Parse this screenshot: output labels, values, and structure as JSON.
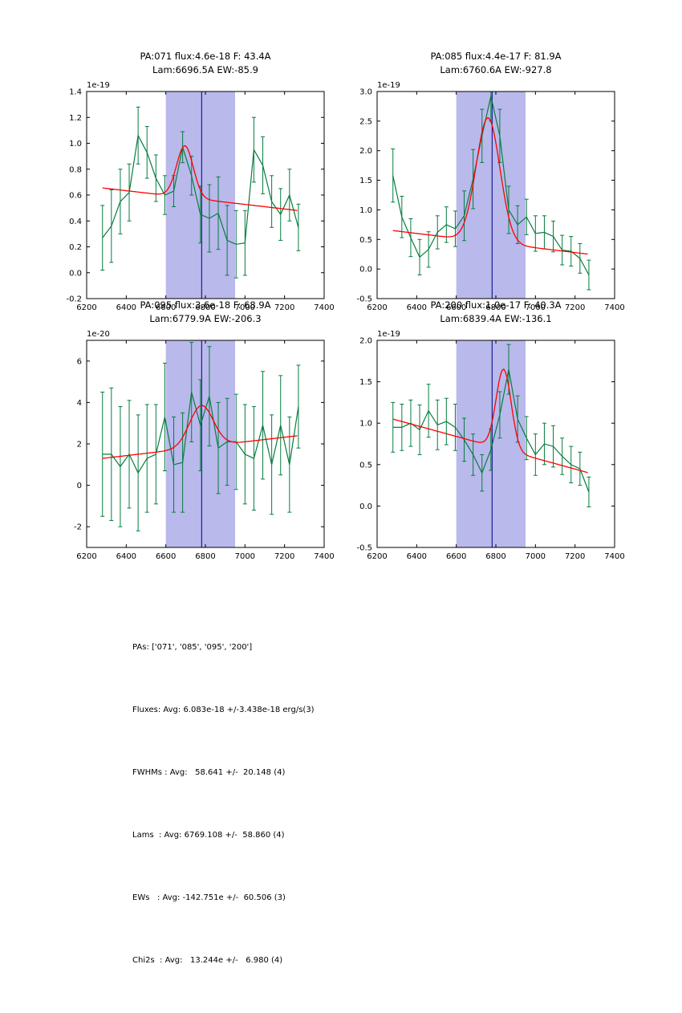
{
  "figure": {
    "background": "#ffffff",
    "data_color": "#067d3e",
    "fit_color": "#ff0000",
    "band_color": "#b9b9ec",
    "vline_color": "#000080",
    "frame_color": "#000000"
  },
  "chart_data": [
    {
      "type": "line",
      "title_line1": "PA:071 flux:4.6e-18 F: 43.4A",
      "title_line2": "Lam:6696.5A EW:-85.9",
      "y_scale_label": "1e-19",
      "xlim": [
        6200,
        7400
      ],
      "ylim": [
        -0.2,
        1.4
      ],
      "xticks": [
        "6200",
        "6400",
        "6600",
        "6800",
        "7000",
        "7200",
        "7400"
      ],
      "yticks": [
        "-0.2",
        "0.0",
        "0.2",
        "0.4",
        "0.6",
        "0.8",
        "1.0",
        "1.2",
        "1.4"
      ],
      "band": [
        6600,
        6950
      ],
      "vline": 6781,
      "grid": false,
      "legend": "none",
      "x": [
        6280,
        6325,
        6370,
        6415,
        6460,
        6505,
        6550,
        6595,
        6640,
        6685,
        6730,
        6775,
        6820,
        6865,
        6910,
        6955,
        7000,
        7045,
        7090,
        7135,
        7180,
        7225,
        7270
      ],
      "y": [
        0.27,
        0.36,
        0.55,
        0.62,
        1.06,
        0.93,
        0.73,
        0.6,
        0.63,
        0.97,
        0.75,
        0.45,
        0.42,
        0.46,
        0.25,
        0.22,
        0.23,
        0.95,
        0.83,
        0.55,
        0.45,
        0.6,
        0.35
      ],
      "yerr": [
        0.25,
        0.28,
        0.25,
        0.22,
        0.22,
        0.2,
        0.18,
        0.15,
        0.12,
        0.12,
        0.15,
        0.22,
        0.26,
        0.28,
        0.27,
        0.26,
        0.25,
        0.25,
        0.22,
        0.2,
        0.2,
        0.2,
        0.18
      ],
      "fit": {
        "name": "gaussian+continuum",
        "x_range": [
          6280,
          7270
        ],
        "cont_start": 0.655,
        "cont_end": 0.48,
        "center": 6696.5,
        "sigma": 42,
        "amplitude": 0.4
      }
    },
    {
      "type": "line",
      "title_line1": "PA:085 flux:4.4e-17 F: 81.9A",
      "title_line2": "Lam:6760.6A EW:-927.8",
      "y_scale_label": "1e-19",
      "xlim": [
        6200,
        7400
      ],
      "ylim": [
        -0.5,
        3.0
      ],
      "xticks": [
        "6200",
        "6400",
        "6600",
        "6800",
        "7000",
        "7200",
        "7400"
      ],
      "yticks": [
        "-0.5",
        "0.0",
        "0.5",
        "1.0",
        "1.5",
        "2.0",
        "2.5",
        "3.0"
      ],
      "band": [
        6600,
        6950
      ],
      "vline": 6781,
      "grid": false,
      "legend": "none",
      "x": [
        6280,
        6325,
        6370,
        6415,
        6460,
        6505,
        6550,
        6595,
        6640,
        6685,
        6730,
        6775,
        6820,
        6865,
        6910,
        6955,
        7000,
        7045,
        7090,
        7135,
        7180,
        7225,
        7270
      ],
      "y": [
        1.58,
        0.88,
        0.53,
        0.2,
        0.33,
        0.62,
        0.75,
        0.68,
        0.9,
        1.52,
        2.25,
        2.92,
        2.25,
        1.0,
        0.75,
        0.88,
        0.6,
        0.62,
        0.55,
        0.32,
        0.3,
        0.18,
        -0.1
      ],
      "yerr": [
        0.45,
        0.35,
        0.32,
        0.3,
        0.3,
        0.28,
        0.3,
        0.3,
        0.42,
        0.5,
        0.45,
        0.42,
        0.45,
        0.4,
        0.32,
        0.3,
        0.3,
        0.28,
        0.26,
        0.25,
        0.25,
        0.25,
        0.25
      ],
      "fit": {
        "name": "gaussian+continuum",
        "x_range": [
          6280,
          7270
        ],
        "cont_start": 0.65,
        "cont_end": 0.25,
        "center": 6760.6,
        "sigma": 60,
        "amplitude": 2.1
      }
    },
    {
      "type": "line",
      "title_line1": "PA:095 flux:3.6e-18 F: 68.9A",
      "title_line2": "Lam:6779.9A EW:-206.3",
      "y_scale_label": "1e-20",
      "xlim": [
        6200,
        7400
      ],
      "ylim": [
        -3.0,
        7.0
      ],
      "xticks": [
        "6200",
        "6400",
        "6600",
        "6800",
        "7000",
        "7200",
        "7400"
      ],
      "yticks": [
        "-2",
        "0",
        "2",
        "4",
        "6"
      ],
      "band": [
        6600,
        6950
      ],
      "vline": 6781,
      "grid": false,
      "legend": "none",
      "x": [
        6280,
        6325,
        6370,
        6415,
        6460,
        6505,
        6550,
        6595,
        6640,
        6685,
        6730,
        6775,
        6820,
        6865,
        6910,
        6955,
        7000,
        7045,
        7090,
        7135,
        7180,
        7225,
        7270
      ],
      "y": [
        1.5,
        1.5,
        0.9,
        1.5,
        0.6,
        1.3,
        1.5,
        3.3,
        1.0,
        1.1,
        4.5,
        2.9,
        4.3,
        1.8,
        2.1,
        2.1,
        1.5,
        1.3,
        2.9,
        1.0,
        2.9,
        1.0,
        3.8
      ],
      "yerr": [
        3.0,
        3.2,
        2.9,
        2.6,
        2.8,
        2.6,
        2.4,
        2.6,
        2.3,
        2.4,
        2.4,
        2.2,
        2.4,
        2.2,
        2.1,
        2.3,
        2.4,
        2.5,
        2.6,
        2.4,
        2.4,
        2.3,
        2.0
      ],
      "fit": {
        "name": "gaussian+continuum",
        "x_range": [
          6280,
          7270
        ],
        "cont_start": 1.3,
        "cont_end": 2.4,
        "center": 6779.9,
        "sigma": 60,
        "amplitude": 2.0
      }
    },
    {
      "type": "line",
      "title_line1": "PA:200 flux:1.0e-17 F: 40.3A",
      "title_line2": "Lam:6839.4A EW:-136.1",
      "y_scale_label": "1e-19",
      "xlim": [
        6200,
        7400
      ],
      "ylim": [
        -0.5,
        2.0
      ],
      "xticks": [
        "6200",
        "6400",
        "6600",
        "6800",
        "7000",
        "7200",
        "7400"
      ],
      "yticks": [
        "-0.5",
        "0.0",
        "0.5",
        "1.0",
        "1.5",
        "2.0"
      ],
      "band": [
        6600,
        6950
      ],
      "vline": 6781,
      "grid": false,
      "legend": "none",
      "x": [
        6280,
        6325,
        6370,
        6415,
        6460,
        6505,
        6550,
        6595,
        6640,
        6685,
        6730,
        6775,
        6820,
        6865,
        6910,
        6955,
        7000,
        7045,
        7090,
        7135,
        7180,
        7225,
        7270
      ],
      "y": [
        0.95,
        0.95,
        1.0,
        0.92,
        1.15,
        0.98,
        1.02,
        0.95,
        0.8,
        0.62,
        0.4,
        0.68,
        1.1,
        1.65,
        1.05,
        0.82,
        0.62,
        0.75,
        0.72,
        0.6,
        0.5,
        0.45,
        0.17
      ],
      "yerr": [
        0.3,
        0.28,
        0.28,
        0.3,
        0.32,
        0.3,
        0.28,
        0.28,
        0.26,
        0.25,
        0.22,
        0.25,
        0.28,
        0.3,
        0.28,
        0.26,
        0.25,
        0.25,
        0.25,
        0.22,
        0.22,
        0.2,
        0.18
      ],
      "fit": {
        "name": "gaussian+continuum",
        "x_range": [
          6280,
          7270
        ],
        "cont_start": 1.05,
        "cont_end": 0.4,
        "center": 6839.4,
        "sigma": 38,
        "amplitude": 0.97
      }
    }
  ],
  "summary": {
    "lines": [
      "PAs: ['071', '085', '095', '200']",
      "Fluxes: Avg: 6.083e-18 +/-3.438e-18 erg/s(3)",
      "FWHMs : Avg:   58.641 +/-  20.148 (4)",
      "Lams  : Avg: 6769.108 +/-  58.860 (4)",
      "EWs   : Avg: -142.751e +/-  60.506 (3)",
      "Chi2s  : Avg:   13.244e +/-   6.980 (4)"
    ]
  }
}
